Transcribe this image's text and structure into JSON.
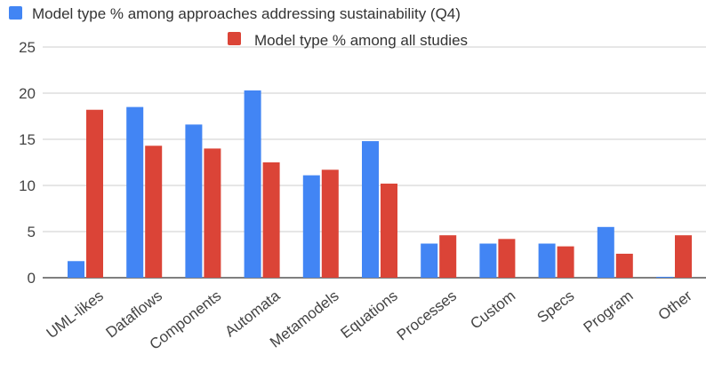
{
  "chart_data": {
    "type": "bar",
    "categories": [
      "UML-likes",
      "Dataflows",
      "Components",
      "Automata",
      "Metamodels",
      "Equations",
      "Processes",
      "Custom",
      "Specs",
      "Program",
      "Other"
    ],
    "series": [
      {
        "name": "Model type % among approaches addressing sustainability (Q4)",
        "color": "#4285f4",
        "values": [
          1.8,
          18.5,
          16.6,
          20.3,
          11.1,
          14.8,
          3.7,
          3.7,
          3.7,
          5.5,
          0.1
        ]
      },
      {
        "name": "Model type % among all studies",
        "color": "#db4437",
        "values": [
          18.2,
          14.3,
          14.0,
          12.5,
          11.7,
          10.2,
          4.6,
          4.2,
          3.4,
          2.6,
          4.6
        ]
      }
    ],
    "ylim": [
      0,
      25
    ],
    "yticks": [
      0,
      5,
      10,
      15,
      20,
      25
    ],
    "grid": true,
    "legend_position": "top"
  }
}
